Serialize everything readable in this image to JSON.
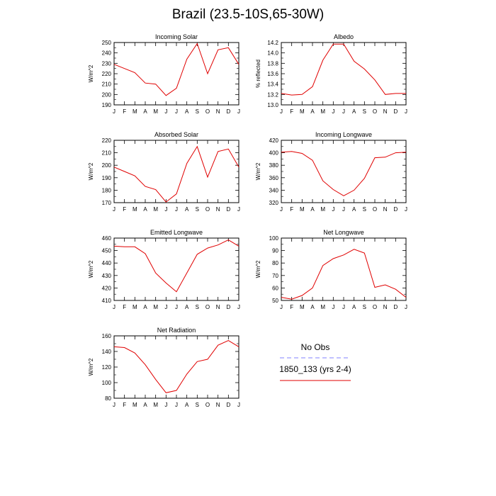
{
  "title": "Brazil (23.5-10S,65-30W)",
  "colors": {
    "model": "#e00000",
    "obs": "#8080ff",
    "axis": "#000000"
  },
  "legend": {
    "obs_label": "No Obs",
    "model_label": "1850_133 (yrs 2-4)"
  },
  "chart_data": [
    {
      "type": "line",
      "title": "Incoming Solar",
      "xlabel": "",
      "ylabel": "W/m^2",
      "categories": [
        "J",
        "F",
        "M",
        "A",
        "M",
        "J",
        "J",
        "A",
        "S",
        "O",
        "N",
        "D",
        "J"
      ],
      "ylim": [
        190,
        250
      ],
      "yticks": [
        190,
        200,
        210,
        220,
        230,
        240,
        250
      ],
      "series": [
        {
          "name": "1850_133 (yrs 2-4)",
          "values": [
            229,
            225,
            221,
            211,
            210,
            199,
            206,
            234,
            249,
            220,
            243,
            245,
            229
          ]
        }
      ]
    },
    {
      "type": "line",
      "title": "Albedo",
      "xlabel": "",
      "ylabel": "% reflected",
      "categories": [
        "J",
        "F",
        "M",
        "A",
        "M",
        "J",
        "J",
        "A",
        "S",
        "O",
        "N",
        "D",
        "J"
      ],
      "ylim": [
        13.0,
        14.2
      ],
      "yticks": [
        13.0,
        13.2,
        13.4,
        13.6,
        13.8,
        14.0,
        14.2
      ],
      "series": [
        {
          "name": "1850_133 (yrs 2-4)",
          "values": [
            13.22,
            13.19,
            13.2,
            13.35,
            13.86,
            14.17,
            14.17,
            13.84,
            13.69,
            13.48,
            13.2,
            13.22,
            13.22
          ]
        }
      ]
    },
    {
      "type": "line",
      "title": "Absorbed Solar",
      "xlabel": "",
      "ylabel": "W/m^2",
      "categories": [
        "J",
        "F",
        "M",
        "A",
        "M",
        "J",
        "J",
        "A",
        "S",
        "O",
        "N",
        "D",
        "J"
      ],
      "ylim": [
        170,
        220
      ],
      "yticks": [
        170,
        180,
        190,
        200,
        210,
        220
      ],
      "series": [
        {
          "name": "1850_133 (yrs 2-4)",
          "values": [
            198.5,
            195,
            191.5,
            183,
            180.5,
            170.5,
            177,
            201.5,
            215,
            190.5,
            211,
            213,
            198.5
          ]
        }
      ]
    },
    {
      "type": "line",
      "title": "Incoming Longwave",
      "xlabel": "",
      "ylabel": "W/m^2",
      "categories": [
        "J",
        "F",
        "M",
        "A",
        "M",
        "J",
        "J",
        "A",
        "S",
        "O",
        "N",
        "D",
        "J"
      ],
      "ylim": [
        320,
        420
      ],
      "yticks": [
        320,
        340,
        360,
        380,
        400,
        420
      ],
      "series": [
        {
          "name": "1850_133 (yrs 2-4)",
          "values": [
            401,
            402,
            399,
            388,
            355,
            341,
            331,
            340,
            359,
            392,
            393,
            400,
            401
          ]
        }
      ]
    },
    {
      "type": "line",
      "title": "Emitted Longwave",
      "xlabel": "",
      "ylabel": "W/m^2",
      "categories": [
        "J",
        "F",
        "M",
        "A",
        "M",
        "J",
        "J",
        "A",
        "S",
        "O",
        "N",
        "D",
        "J"
      ],
      "ylim": [
        410,
        460
      ],
      "yticks": [
        410,
        420,
        430,
        440,
        450,
        460
      ],
      "series": [
        {
          "name": "1850_133 (yrs 2-4)",
          "values": [
            453.5,
            453,
            453,
            447.5,
            432,
            424,
            417,
            432,
            447,
            452,
            454.5,
            458.5,
            453.5
          ]
        }
      ]
    },
    {
      "type": "line",
      "title": "Net Longwave",
      "xlabel": "",
      "ylabel": "W/m^2",
      "categories": [
        "J",
        "F",
        "M",
        "A",
        "M",
        "J",
        "J",
        "A",
        "S",
        "O",
        "N",
        "D",
        "J"
      ],
      "ylim": [
        50,
        100
      ],
      "yticks": [
        50,
        60,
        70,
        80,
        90,
        100
      ],
      "series": [
        {
          "name": "1850_133 (yrs 2-4)",
          "values": [
            52.5,
            51,
            54,
            60,
            78,
            83.5,
            86.5,
            91,
            88,
            60.5,
            62.5,
            59,
            52.5
          ]
        }
      ]
    },
    {
      "type": "line",
      "title": "Net Radiation",
      "xlabel": "",
      "ylabel": "W/m^2",
      "categories": [
        "J",
        "F",
        "M",
        "A",
        "M",
        "J",
        "J",
        "A",
        "S",
        "O",
        "N",
        "D",
        "J"
      ],
      "ylim": [
        80,
        160
      ],
      "yticks": [
        80,
        100,
        120,
        140,
        160
      ],
      "series": [
        {
          "name": "1850_133 (yrs 2-4)",
          "values": [
            146,
            145,
            138,
            123,
            104,
            87,
            90,
            111,
            127,
            130,
            148,
            154,
            146
          ]
        }
      ]
    }
  ]
}
